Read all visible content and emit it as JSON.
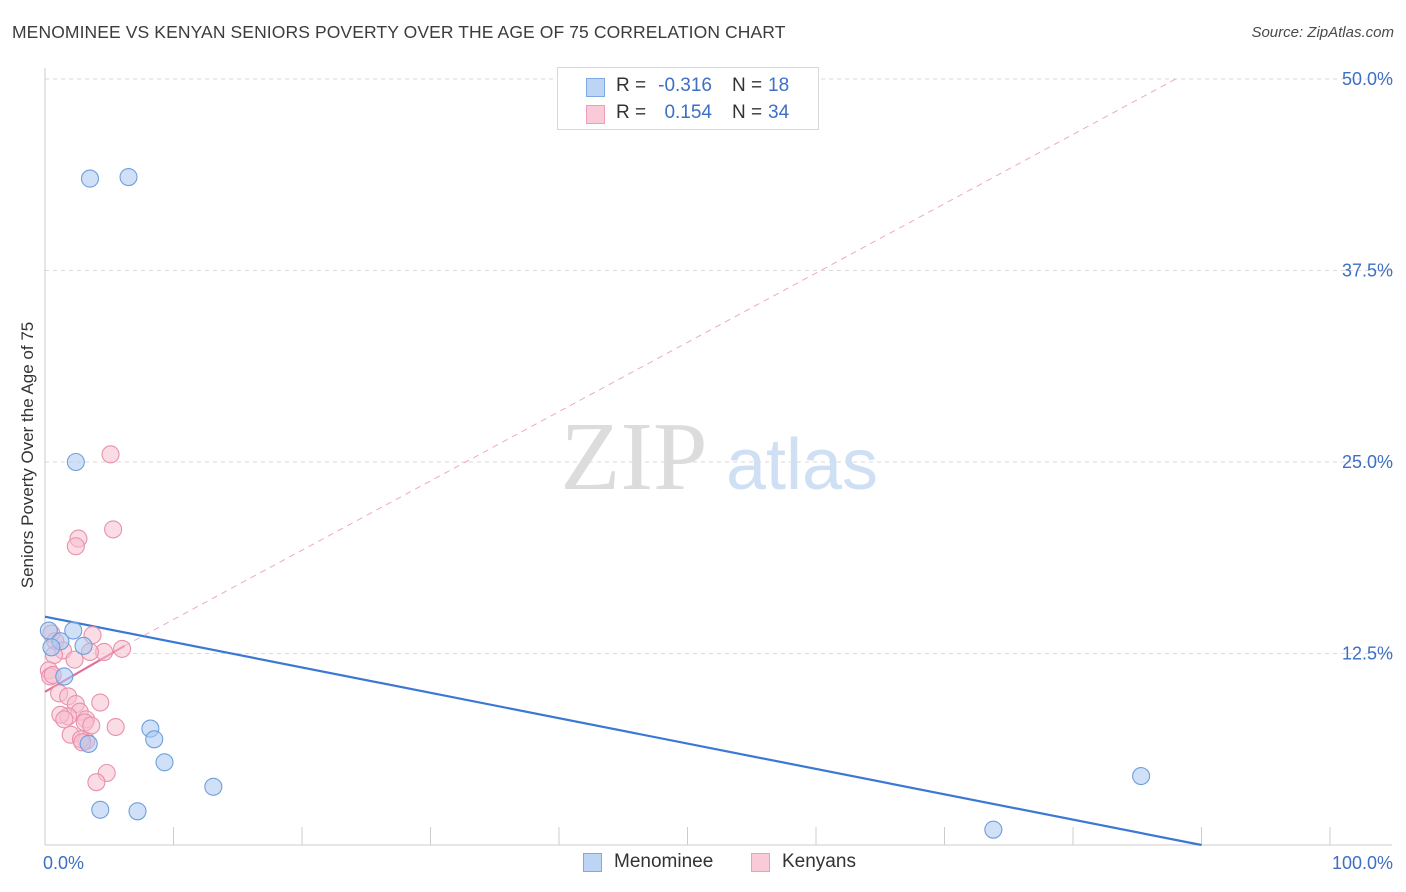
{
  "title": "MENOMINEE VS KENYAN SENIORS POVERTY OVER THE AGE OF 75 CORRELATION CHART",
  "source": "Source: ZipAtlas.com",
  "watermark": {
    "zip": "ZIP",
    "atlas": "atlas"
  },
  "legend": {
    "rows": [
      {
        "r_label": "R =",
        "r_value": "-0.316",
        "n_label": "N =",
        "n_value": "18"
      },
      {
        "r_label": "R =",
        "r_value": "0.154",
        "n_label": "N =",
        "n_value": "34"
      }
    ]
  },
  "colors": {
    "menominee_fill": "#a9c8f0",
    "menominee_stroke": "#6f9fdc",
    "menominee_line": "#3a78d4",
    "kenyans_fill": "#f6bfd0",
    "kenyans_stroke": "#e990ac",
    "kenyans_line": "#e0709a",
    "axis_label": "#3d6fc4",
    "grid": "#d9d9d9"
  },
  "chart_data": {
    "type": "scatter",
    "title": "MENOMINEE VS KENYAN SENIORS POVERTY OVER THE AGE OF 75 CORRELATION CHART",
    "xlabel": "",
    "ylabel": "Seniors Poverty Over the Age of 75",
    "xlim": [
      0,
      100
    ],
    "ylim": [
      0,
      50
    ],
    "x_tick_labels": [
      "0.0%",
      "100.0%"
    ],
    "y_ticks": [
      12.5,
      25.0,
      37.5,
      50.0
    ],
    "y_tick_labels": [
      "12.5%",
      "25.0%",
      "37.5%",
      "50.0%"
    ],
    "grid": true,
    "legend_position": "bottom-center",
    "series": [
      {
        "name": "Menominee",
        "color": "#a9c8f0",
        "x": [
          3.5,
          6.5,
          2.4,
          0.3,
          2.2,
          1.2,
          3.0,
          1.5,
          8.2,
          8.5,
          9.3,
          13.1,
          3.4,
          4.3,
          7.2,
          85.3,
          73.8,
          0.5
        ],
        "y": [
          43.5,
          43.6,
          25.0,
          14.0,
          14.0,
          13.3,
          13.0,
          11.0,
          7.6,
          6.9,
          5.4,
          3.8,
          6.6,
          2.3,
          2.2,
          4.5,
          1.0,
          12.9
        ],
        "trend": {
          "x": [
            0,
            90
          ],
          "y": [
            14.9,
            0
          ]
        }
      },
      {
        "name": "Kenyans",
        "color": "#f6bfd0",
        "x": [
          5.1,
          5.3,
          2.6,
          2.4,
          0.5,
          0.8,
          1.4,
          3.7,
          6.0,
          4.6,
          3.5,
          2.3,
          0.7,
          0.3,
          0.4,
          0.6,
          1.1,
          1.8,
          4.3,
          2.4,
          2.7,
          3.2,
          1.8,
          1.2,
          1.5,
          5.5,
          3.1,
          3.2,
          2.0,
          2.8,
          2.9,
          3.6,
          4.8,
          4.0
        ],
        "y": [
          25.5,
          20.6,
          20.0,
          19.5,
          13.8,
          13.3,
          12.7,
          13.7,
          12.8,
          12.6,
          12.6,
          12.1,
          12.4,
          11.4,
          11.0,
          11.1,
          9.9,
          9.7,
          9.3,
          9.2,
          8.7,
          8.2,
          8.4,
          8.5,
          8.2,
          7.7,
          8.0,
          6.8,
          7.2,
          6.9,
          6.7,
          7.8,
          4.7,
          4.1
        ],
        "trend": {
          "x": [
            0,
            6.2
          ],
          "y": [
            10.0,
            13.0
          ]
        },
        "trend_extension": {
          "x": [
            6.2,
            88
          ],
          "y": [
            13.0,
            50.0
          ]
        }
      }
    ]
  }
}
